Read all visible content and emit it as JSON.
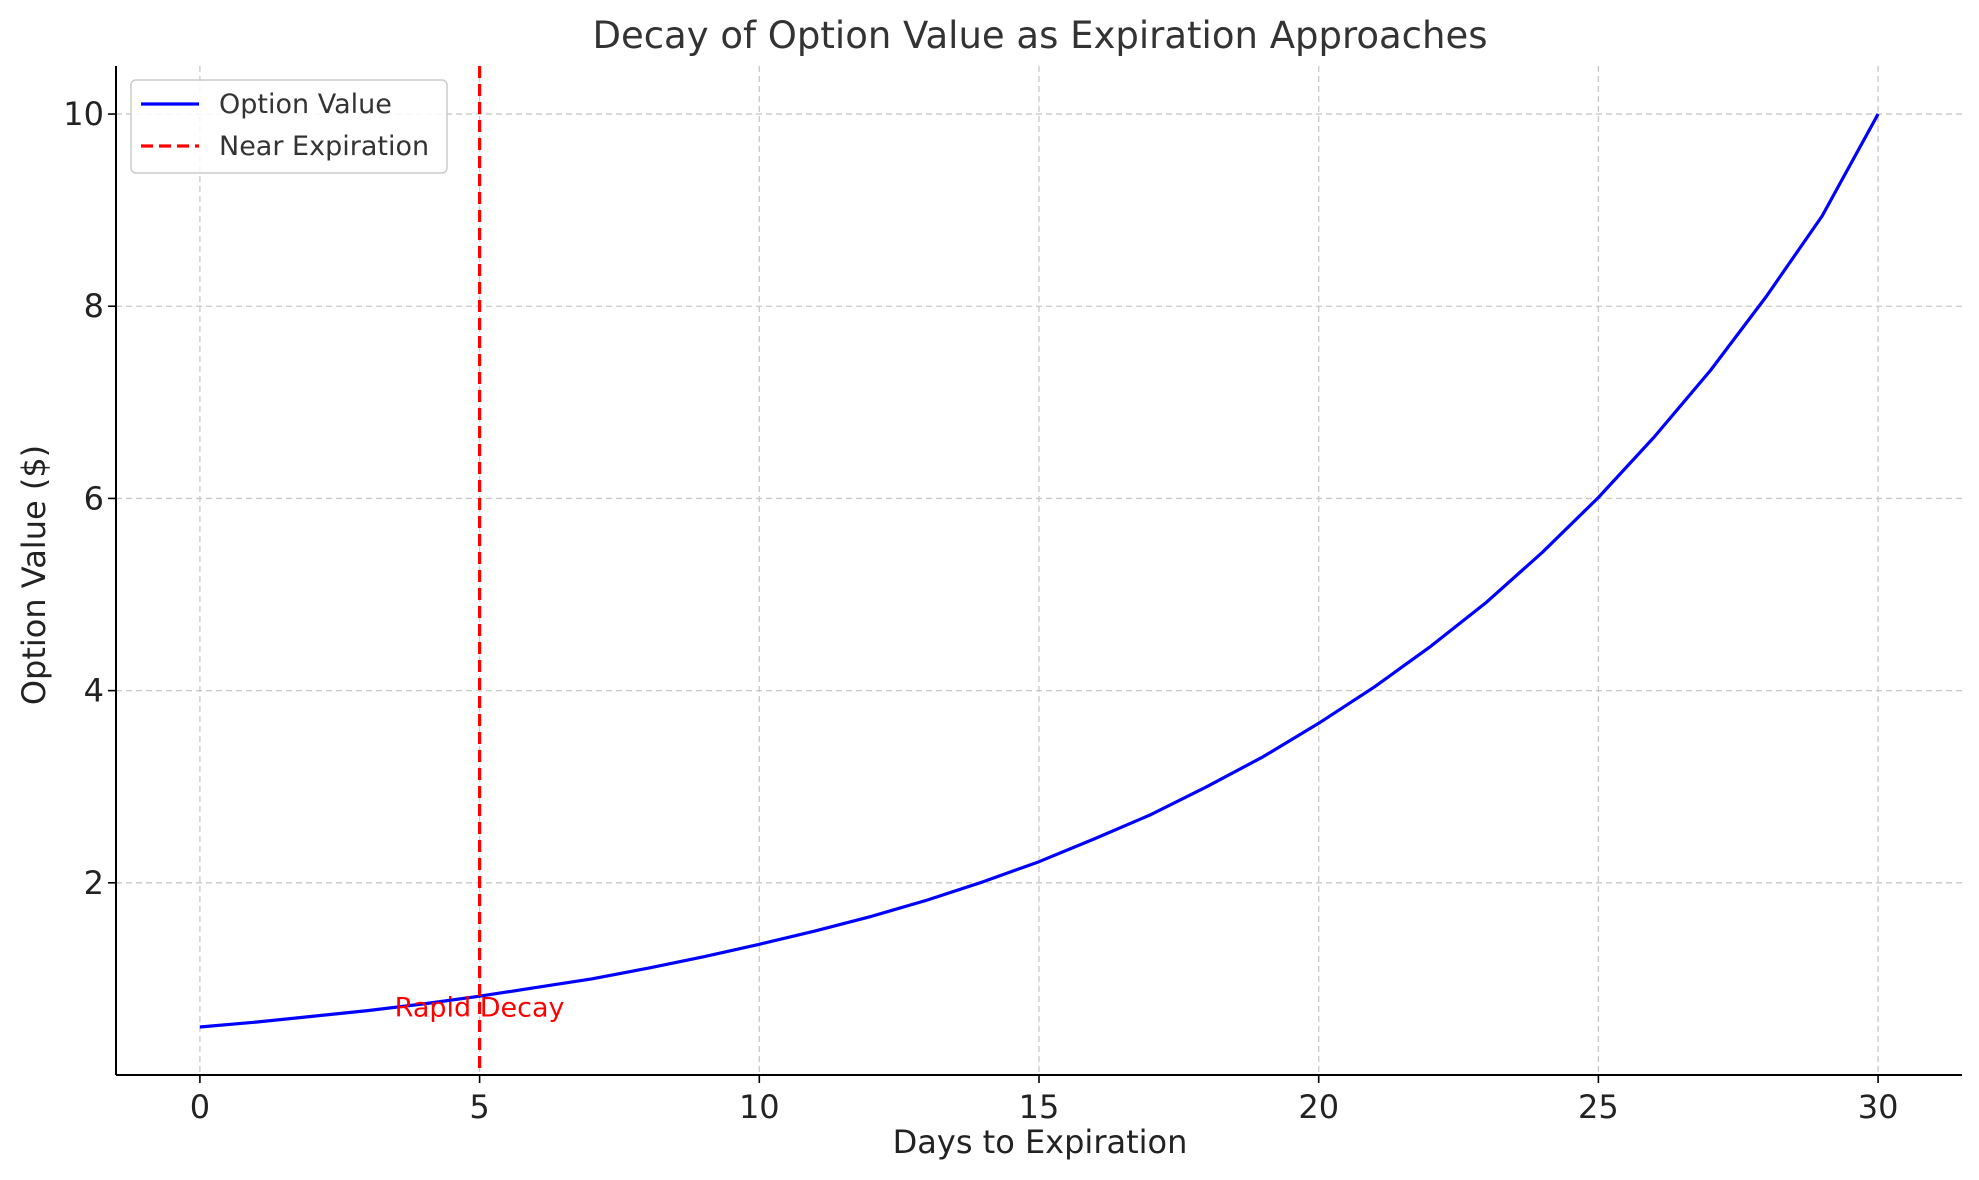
{
  "chart_data": {
    "type": "line",
    "title": "Decay of Option Value as Expiration Approaches",
    "xlabel": "Days to Expiration",
    "ylabel": "Option Value ($)",
    "xlim": [
      -1.5,
      31.5
    ],
    "ylim": [
      0,
      10.5
    ],
    "x_ticks": [
      0,
      5,
      10,
      15,
      20,
      25,
      30
    ],
    "y_ticks": [
      2,
      4,
      6,
      8,
      10
    ],
    "grid": true,
    "legend_position": "top-left",
    "series": [
      {
        "name": "Option Value",
        "color": "#0000ff",
        "style": "solid",
        "x": [
          0,
          1,
          2,
          3,
          4,
          5,
          6,
          7,
          8,
          9,
          10,
          11,
          12,
          13,
          14,
          15,
          16,
          17,
          18,
          19,
          20,
          21,
          22,
          23,
          24,
          25,
          26,
          27,
          28,
          29,
          30
        ],
        "values": [
          0.5,
          0.55,
          0.61,
          0.67,
          0.74,
          0.82,
          0.91,
          1.0,
          1.11,
          1.23,
          1.36,
          1.5,
          1.65,
          1.82,
          2.01,
          2.22,
          2.46,
          2.71,
          3.0,
          3.31,
          3.66,
          4.04,
          4.46,
          4.92,
          5.44,
          6.01,
          6.64,
          7.33,
          8.1,
          8.94,
          10.0
        ]
      }
    ],
    "vlines": [
      {
        "name": "Near Expiration",
        "x": 5,
        "color": "#ff0000",
        "style": "dashed"
      }
    ],
    "annotations": [
      {
        "text": "Rapid Decay",
        "x": 5,
        "y": 0.7,
        "color": "#ff0000"
      }
    ]
  }
}
